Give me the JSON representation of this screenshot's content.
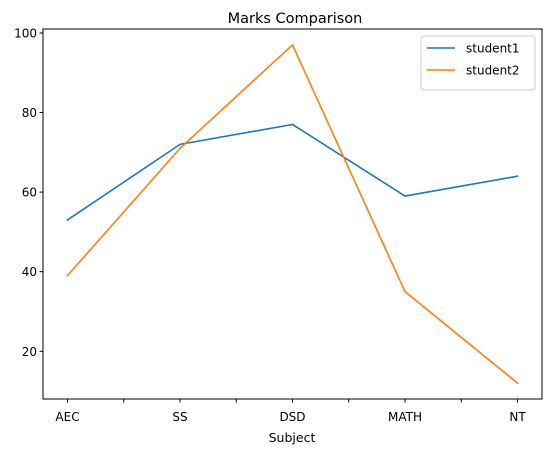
{
  "chart_data": {
    "type": "line",
    "title": "Marks Comparison",
    "xlabel": "Subject",
    "ylabel": "",
    "categories": [
      "AEC",
      "SS",
      "DSD",
      "MATH",
      "NT"
    ],
    "ylim": [
      8,
      101
    ],
    "yticks": [
      20,
      40,
      60,
      80,
      100
    ],
    "grid": false,
    "legend_position": "top-right",
    "series": [
      {
        "name": "student1",
        "color": "#1f77b4",
        "values": [
          53,
          72,
          77,
          59,
          64
        ]
      },
      {
        "name": "student2",
        "color": "#ff7f0e",
        "values": [
          39,
          71,
          97,
          35,
          12
        ]
      }
    ]
  }
}
